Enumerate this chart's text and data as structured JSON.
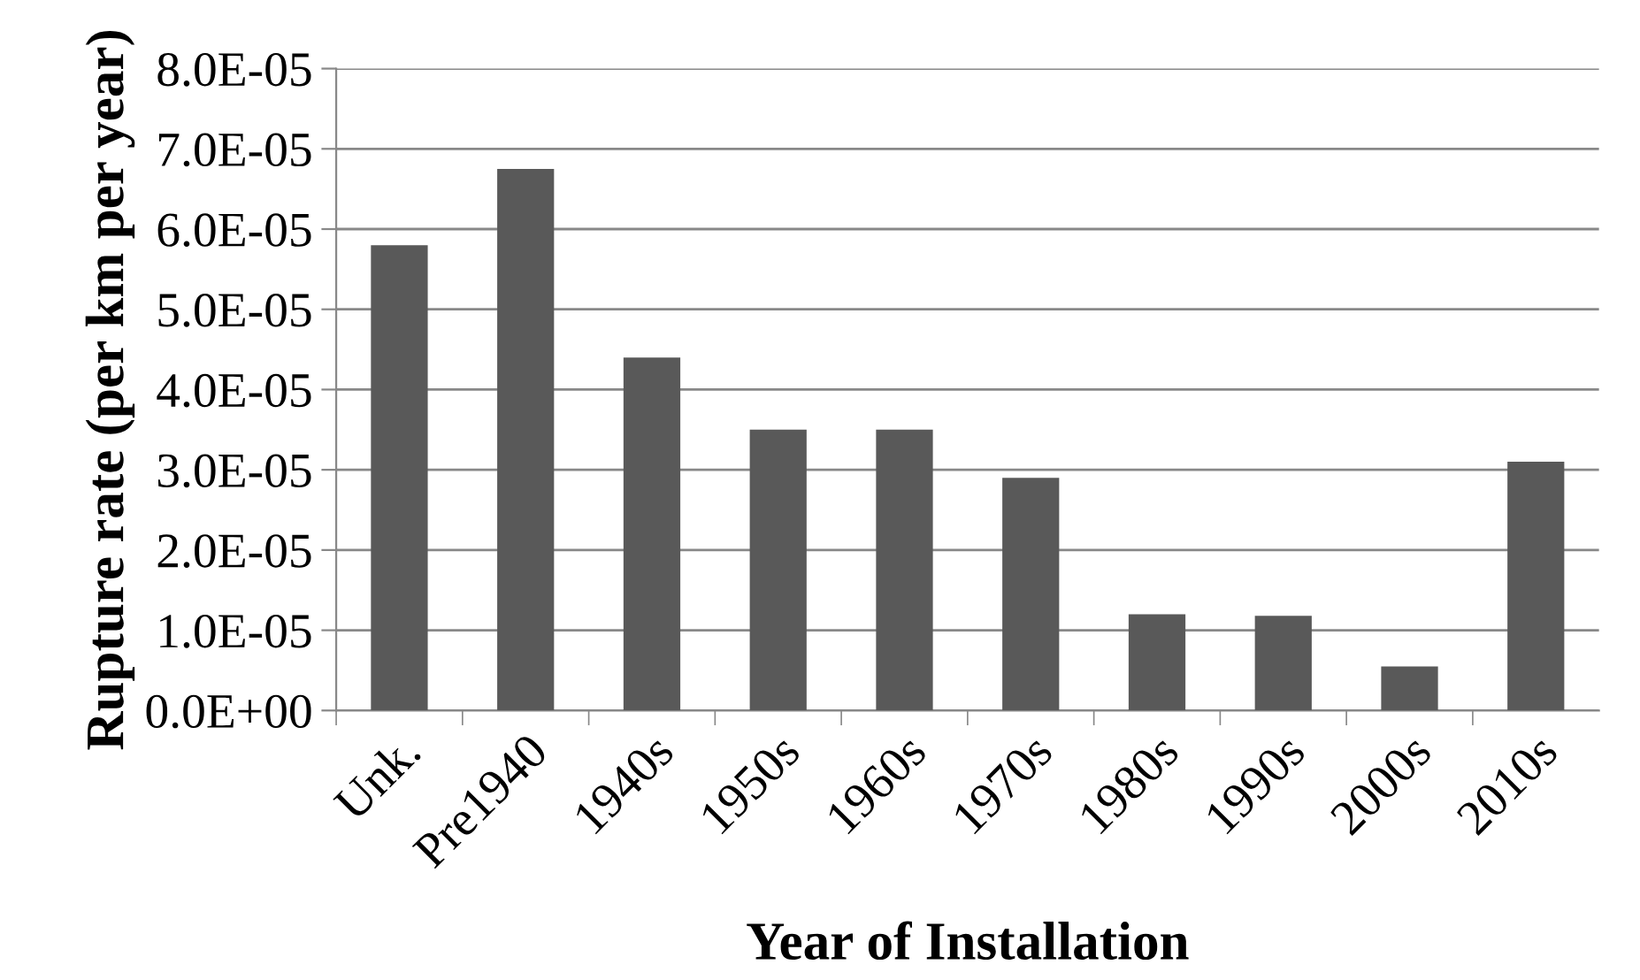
{
  "chart_data": {
    "type": "bar",
    "xlabel": "Year of Installation",
    "ylabel": "Rupture rate (per km per year)",
    "categories": [
      "Unk.",
      "Pre1940",
      "1940s",
      "1950s",
      "1960s",
      "1970s",
      "1980s",
      "1990s",
      "2000s",
      "2010s"
    ],
    "values": [
      5.8e-05,
      6.75e-05,
      4.4e-05,
      3.5e-05,
      3.5e-05,
      2.9e-05,
      1.2e-05,
      1.18e-05,
      5.5e-06,
      3.1e-05
    ],
    "color": "#595959",
    "ylim": [
      0,
      8e-05
    ],
    "yticks": [
      {
        "value": 0,
        "label": "0.0E+00"
      },
      {
        "value": 1e-05,
        "label": "1.0E-05"
      },
      {
        "value": 2e-05,
        "label": "2.0E-05"
      },
      {
        "value": 3e-05,
        "label": "3.0E-05"
      },
      {
        "value": 4e-05,
        "label": "4.0E-05"
      },
      {
        "value": 5e-05,
        "label": "5.0E-05"
      },
      {
        "value": 6e-05,
        "label": "6.0E-05"
      },
      {
        "value": 7e-05,
        "label": "7.0E-05"
      },
      {
        "value": 8e-05,
        "label": "8.0E-05"
      }
    ],
    "grid": "y",
    "legend": false
  }
}
